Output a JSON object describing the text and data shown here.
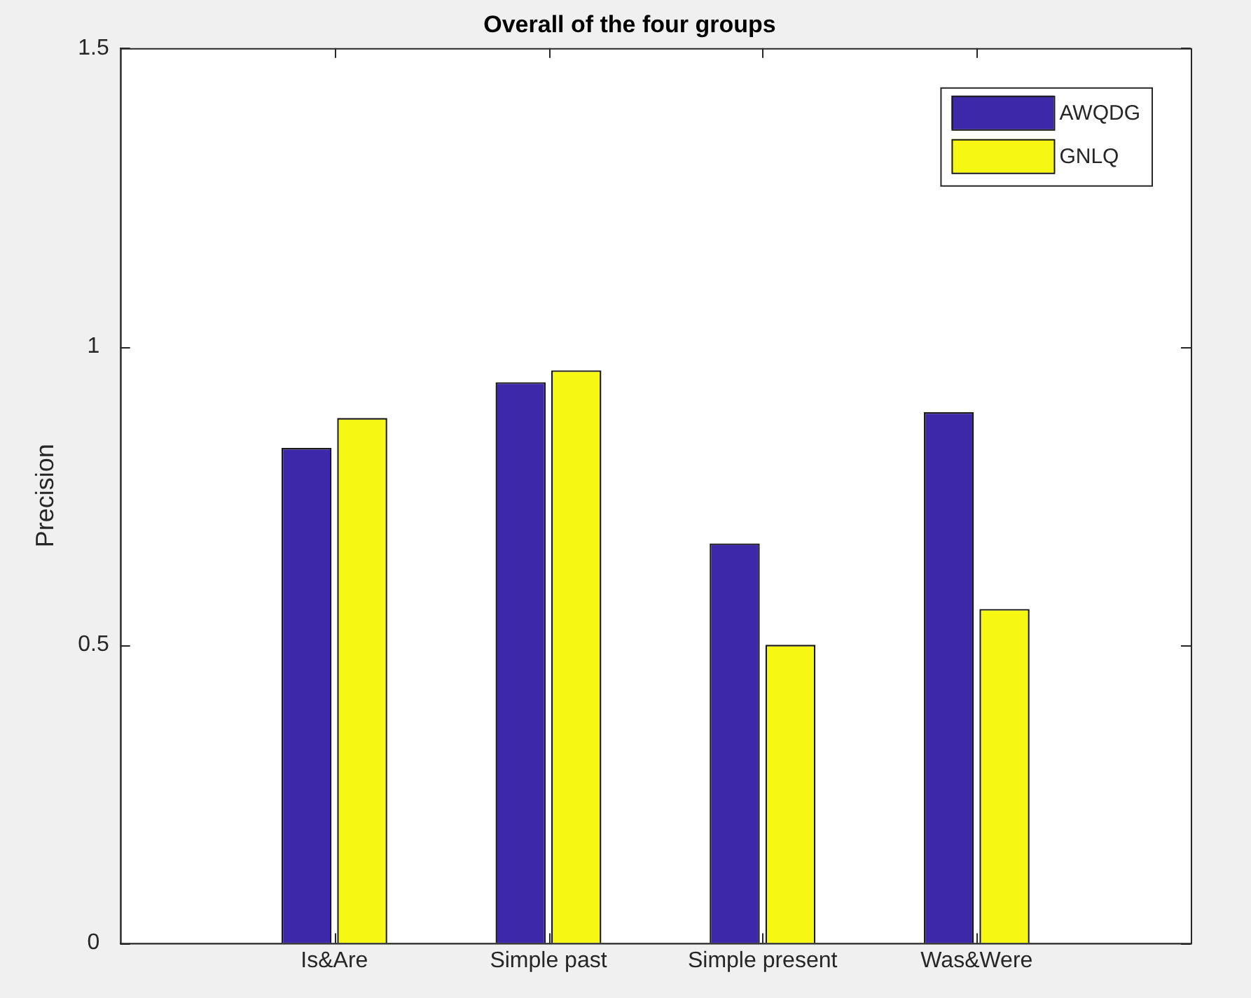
{
  "chart_data": {
    "type": "bar",
    "title": "Overall of the four groups",
    "ylabel": "Precision",
    "categories": [
      "Is&Are",
      "Simple past",
      "Simple present",
      "Was&Were"
    ],
    "series": [
      {
        "name": "AWQDG",
        "color": "#3c28a8",
        "values": [
          0.83,
          0.94,
          0.67,
          0.89
        ]
      },
      {
        "name": "GNLQ",
        "color": "#f7f714",
        "values": [
          0.88,
          0.96,
          0.5,
          0.56
        ]
      }
    ],
    "ylim": [
      0,
      1.5
    ],
    "yticks": [
      0,
      0.5,
      1,
      1.5
    ],
    "grid": false,
    "legend": "top right"
  }
}
